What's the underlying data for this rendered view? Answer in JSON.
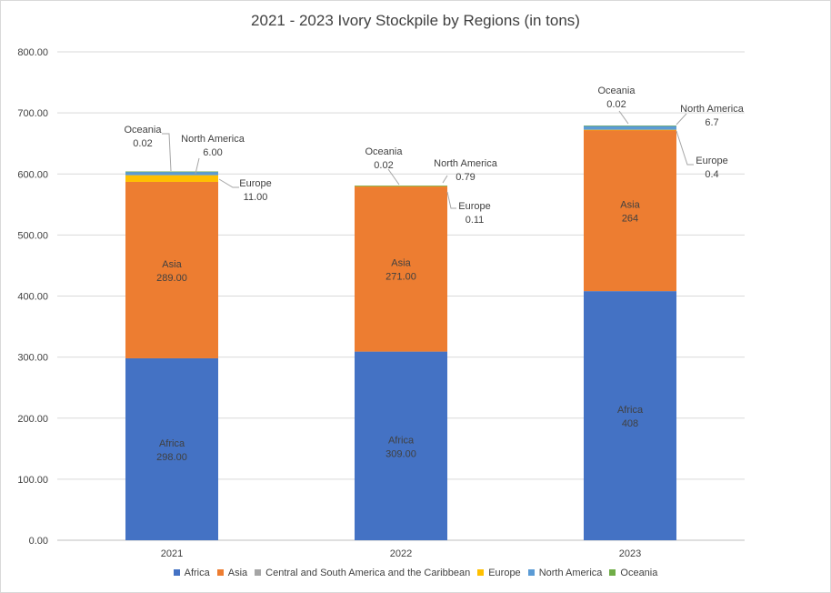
{
  "chart_data": {
    "type": "bar",
    "stacked": true,
    "title": "2021 - 2023 Ivory Stockpile by Regions (in tons)",
    "xlabel": "",
    "ylabel": "",
    "ylim": [
      0,
      800
    ],
    "yticks": [
      "0.00",
      "100.00",
      "200.00",
      "300.00",
      "400.00",
      "500.00",
      "600.00",
      "700.00",
      "800.00"
    ],
    "grid": true,
    "legend_position": "bottom",
    "categories": [
      "2021",
      "2022",
      "2023"
    ],
    "series": [
      {
        "name": "Africa",
        "color": "#4472c4",
        "values": [
          298,
          309,
          408
        ],
        "labels": [
          "298.00",
          "309.00",
          "408"
        ]
      },
      {
        "name": "Asia",
        "color": "#ed7d31",
        "values": [
          289,
          271,
          264
        ],
        "labels": [
          "289.00",
          "271.00",
          "264"
        ]
      },
      {
        "name": "Central and South America and the Caribbean",
        "color": "#a5a5a5",
        "values": [
          0,
          0,
          0
        ],
        "labels": [
          "",
          "",
          ""
        ]
      },
      {
        "name": "Europe",
        "color": "#ffc000",
        "values": [
          11,
          0.11,
          0.4
        ],
        "labels": [
          "11.00",
          "0.11",
          "0.4"
        ]
      },
      {
        "name": "North America",
        "color": "#5b9bd5",
        "values": [
          6,
          0.79,
          6.7
        ],
        "labels": [
          "6.00",
          "0.79",
          "6.7"
        ]
      },
      {
        "name": "Oceania",
        "color": "#70ad47",
        "values": [
          0.02,
          0.02,
          0.02
        ],
        "labels": [
          "0.02",
          "0.02",
          "0.02"
        ]
      }
    ]
  }
}
